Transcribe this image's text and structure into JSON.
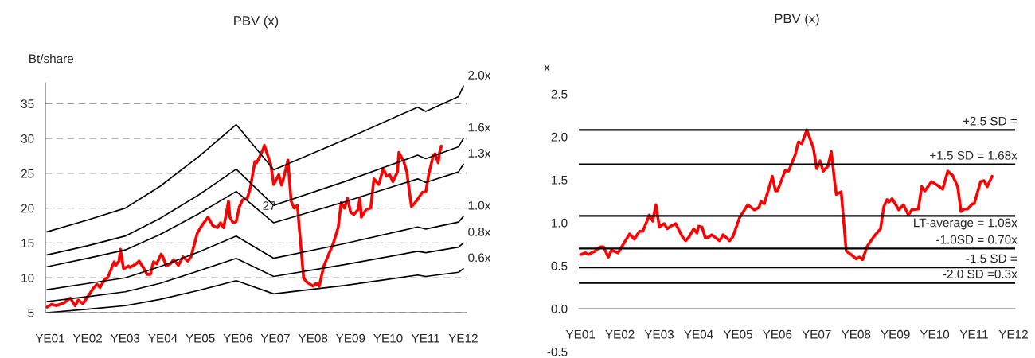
{
  "chart_data": [
    {
      "type": "line",
      "title": "PBV (x)",
      "ylabel": "Bt/share",
      "xlim": [
        "2001-11-15",
        "2013-02-01"
      ],
      "ylim": [
        5,
        38
      ],
      "yticks": [
        5,
        10,
        15,
        20,
        25,
        30,
        35
      ],
      "xticks": [
        {
          "value": "2001-12-31",
          "label": "YE01"
        },
        {
          "value": "2002-12-31",
          "label": "YE02"
        },
        {
          "value": "2003-12-31",
          "label": "YE03"
        },
        {
          "value": "2004-12-31",
          "label": "YE04"
        },
        {
          "value": "2005-12-31",
          "label": "YE05"
        },
        {
          "value": "2006-12-31",
          "label": "YE06"
        },
        {
          "value": "2007-12-31",
          "label": "YE07"
        },
        {
          "value": "2008-12-31",
          "label": "YE08"
        },
        {
          "value": "2009-12-31",
          "label": "YE09"
        },
        {
          "value": "2010-12-31",
          "label": "YE10"
        },
        {
          "value": "2011-12-31",
          "label": "YE11"
        },
        {
          "value": "2012-12-31",
          "label": "YE12"
        }
      ],
      "grid": "y",
      "legend": false,
      "marker": "none",
      "line_style": "solid",
      "annotations": [
        {
          "text": "27",
          "x": "2007-11-01",
          "y": 20.2
        }
      ],
      "series": [
        {
          "color": "#ff0000",
          "x": [
            "2001-12-01",
            "2002-01-15",
            "2002-03-01",
            "2002-05-15",
            "2002-07-15",
            "2002-09-01",
            "2002-10-01",
            "2002-11-15",
            "2003-01-01",
            "2003-03-01",
            "2003-04-01",
            "2003-05-01",
            "2003-06-15",
            "2003-07-15",
            "2003-09-01",
            "2003-09-15",
            "2003-10-01",
            "2003-11-01",
            "2003-11-15",
            "2003-12-15",
            "2004-02-01",
            "2004-02-15",
            "2004-04-15",
            "2004-05-15",
            "2004-07-01",
            "2004-08-01",
            "2004-09-01",
            "2004-10-01",
            "2004-11-01",
            "2004-12-15",
            "2005-01-01",
            "2005-02-01",
            "2005-03-15",
            "2005-04-15",
            "2005-06-01",
            "2005-07-15",
            "2005-09-01",
            "2005-10-01",
            "2005-12-01",
            "2006-01-15",
            "2006-03-15",
            "2006-05-01",
            "2006-06-15",
            "2006-07-15",
            "2006-08-15",
            "2006-10-01",
            "2006-10-15",
            "2006-11-15",
            "2006-12-15",
            "2007-01-15",
            "2007-02-15",
            "2007-04-01",
            "2007-05-01",
            "2007-06-15",
            "2007-07-01",
            "2007-08-01",
            "2007-09-01",
            "2007-09-15",
            "2007-11-15",
            "2007-12-15",
            "2008-02-01",
            "2008-03-01",
            "2008-03-15",
            "2008-05-01",
            "2008-06-01",
            "2008-07-01",
            "2008-08-01",
            "2008-08-15",
            "2008-10-01",
            "2008-11-01",
            "2009-01-01",
            "2009-02-01",
            "2009-03-01",
            "2009-04-15",
            "2009-07-15",
            "2009-09-01",
            "2009-10-01",
            "2009-11-01",
            "2009-12-01",
            "2010-01-01",
            "2010-02-01",
            "2010-03-15",
            "2010-04-01",
            "2010-04-15",
            "2010-06-01",
            "2010-07-15",
            "2010-08-15",
            "2010-10-01",
            "2010-11-15",
            "2010-12-15",
            "2011-01-15",
            "2011-02-15",
            "2011-04-01",
            "2011-04-15",
            "2011-06-01",
            "2011-07-01",
            "2011-08-15",
            "2011-10-01",
            "2011-12-01",
            "2012-01-01",
            "2012-02-01",
            "2012-03-15",
            "2012-04-01",
            "2012-05-01",
            "2012-05-15",
            "2012-06-01"
          ],
          "values": [
            5.8,
            6.2,
            6.0,
            6.4,
            7.1,
            6.0,
            6.8,
            6.3,
            7.3,
            8.6,
            9.1,
            8.6,
            9.8,
            10.0,
            11.8,
            12.3,
            11.8,
            12.4,
            14.1,
            11.3,
            11.7,
            11.5,
            12.0,
            12.4,
            11.3,
            10.5,
            10.5,
            12.3,
            12.0,
            13.4,
            13.0,
            11.7,
            12.0,
            12.6,
            11.8,
            13.0,
            12.4,
            13.0,
            16.4,
            17.5,
            18.7,
            17.5,
            17.2,
            17.9,
            17.2,
            21.0,
            18.7,
            17.9,
            18.1,
            20.2,
            21.2,
            21.4,
            22.9,
            26.7,
            26.5,
            27.4,
            28.4,
            29.0,
            26.3,
            23.4,
            24.8,
            23.3,
            24.0,
            26.9,
            21.0,
            20.0,
            20.4,
            17.9,
            9.9,
            9.4,
            8.8,
            9.2,
            8.8,
            11.7,
            14.9,
            17.2,
            20.8,
            20.0,
            21.4,
            19.4,
            19.1,
            19.8,
            21.5,
            18.7,
            19.8,
            20.0,
            24.2,
            23.4,
            25.7,
            24.6,
            24.8,
            23.8,
            25.2,
            28.0,
            26.7,
            25.2,
            20.2,
            21.0,
            22.3,
            22.3,
            25.0,
            27.6,
            27.8,
            26.5,
            28.0,
            28.9
          ]
        },
        {
          "name": "2.0x",
          "color": "#000000",
          "x": [
            "2001-12-01",
            "2003-01-01",
            "2004-01-01",
            "2004-12-01",
            "2005-12-15",
            "2006-12-15",
            "2007-12-15",
            "2009-11-01",
            "2011-10-15",
            "2012-01-01",
            "2012-11-15",
            "2013-01-01"
          ],
          "values": [
            16.6,
            18.3,
            20.0,
            23.1,
            27.4,
            32.0,
            25.5,
            29.8,
            34.5,
            33.9,
            36.0,
            37.5
          ]
        },
        {
          "name": "1.6x",
          "color": "#000000",
          "x": [
            "2001-12-01",
            "2003-01-01",
            "2004-01-01",
            "2004-12-01",
            "2005-12-15",
            "2006-12-15",
            "2007-12-15",
            "2009-11-01",
            "2011-10-15",
            "2012-01-01",
            "2012-11-15",
            "2013-01-01"
          ],
          "values": [
            13.3,
            14.6,
            16.0,
            18.5,
            21.9,
            25.6,
            20.4,
            23.8,
            27.6,
            27.1,
            28.8,
            30.0
          ]
        },
        {
          "name": "1.3x",
          "color": "#000000",
          "x": [
            "2001-12-01",
            "2003-01-01",
            "2004-01-01",
            "2004-12-01",
            "2005-12-15",
            "2006-12-15",
            "2007-12-15",
            "2009-11-01",
            "2011-10-15",
            "2012-01-01",
            "2012-11-15",
            "2013-01-01"
          ],
          "values": [
            11.6,
            12.8,
            14.0,
            16.2,
            19.2,
            22.4,
            17.9,
            20.9,
            24.2,
            23.7,
            25.2,
            26.3
          ]
        },
        {
          "name": "1.0x",
          "color": "#000000",
          "x": [
            "2001-12-01",
            "2003-01-01",
            "2004-01-01",
            "2004-12-01",
            "2005-12-15",
            "2006-12-15",
            "2007-12-15",
            "2009-11-01",
            "2011-10-15",
            "2012-01-01",
            "2012-11-15",
            "2013-01-01"
          ],
          "values": [
            8.3,
            9.2,
            10.0,
            11.6,
            13.7,
            16.0,
            12.8,
            14.9,
            17.3,
            17.0,
            18.0,
            18.8
          ]
        },
        {
          "name": "0.8x",
          "color": "#000000",
          "x": [
            "2001-12-01",
            "2003-01-01",
            "2004-01-01",
            "2004-12-01",
            "2005-12-15",
            "2006-12-15",
            "2007-12-15",
            "2009-11-01",
            "2011-10-15",
            "2012-01-01",
            "2012-11-15",
            "2013-01-01"
          ],
          "values": [
            6.6,
            7.3,
            8.0,
            9.2,
            11.0,
            12.8,
            10.2,
            11.9,
            13.8,
            13.6,
            14.4,
            15.0
          ]
        },
        {
          "name": "0.6x",
          "color": "#000000",
          "x": [
            "2001-12-01",
            "2003-01-01",
            "2004-01-01",
            "2004-12-01",
            "2005-12-15",
            "2006-12-15",
            "2007-12-15",
            "2009-11-01",
            "2011-10-15",
            "2012-01-01",
            "2012-11-15",
            "2013-01-01"
          ],
          "values": [
            5.0,
            5.5,
            6.0,
            6.9,
            8.2,
            9.6,
            7.7,
            8.9,
            10.4,
            10.2,
            10.8,
            11.3
          ]
        }
      ]
    },
    {
      "type": "line",
      "title": "PBV (x)",
      "ylabel": "x",
      "xlim": [
        "2001-12-15",
        "2013-01-15"
      ],
      "ylim": [
        -0.5,
        2.5
      ],
      "yticks": [
        {
          "value": -0.5,
          "label": "-0.5"
        },
        {
          "value": 0,
          "label": "0.0"
        },
        {
          "value": 0.5,
          "label": "0.5"
        },
        {
          "value": 1,
          "label": "1.0"
        },
        {
          "value": 1.5,
          "label": "1.5"
        },
        {
          "value": 2,
          "label": "2.0"
        },
        {
          "value": 2.5,
          "label": "2.5"
        }
      ],
      "xticks": [
        {
          "value": "2001-12-31",
          "label": "YE01"
        },
        {
          "value": "2002-12-31",
          "label": "YE02"
        },
        {
          "value": "2003-12-31",
          "label": "YE03"
        },
        {
          "value": "2004-12-31",
          "label": "YE04"
        },
        {
          "value": "2005-12-31",
          "label": "YE05"
        },
        {
          "value": "2006-12-31",
          "label": "YE06"
        },
        {
          "value": "2007-12-31",
          "label": "YE07"
        },
        {
          "value": "2008-12-31",
          "label": "YE08"
        },
        {
          "value": "2009-12-31",
          "label": "YE09"
        },
        {
          "value": "2010-12-31",
          "label": "YE10"
        },
        {
          "value": "2011-12-31",
          "label": "YE11"
        },
        {
          "value": "2012-12-31",
          "label": "YE12"
        }
      ],
      "legend": false,
      "marker": "none",
      "line_style": "solid",
      "ref_lines": [
        {
          "axis": "y",
          "value": 2.08,
          "label": "+2.5 SD =",
          "color": "#000000"
        },
        {
          "axis": "y",
          "value": 1.68,
          "label": "+1.5 SD = 1.68x",
          "color": "#000000"
        },
        {
          "axis": "y",
          "value": 1.08,
          "label": "LT-average = 1.08x",
          "color": "#000000"
        },
        {
          "axis": "y",
          "value": 0.7,
          "label": "-1.0SD = 0.70x",
          "color": "#000000"
        },
        {
          "axis": "y",
          "value": 0.48,
          "label": "-1.5 SD =",
          "color": "#000000"
        },
        {
          "axis": "y",
          "value": 0.3,
          "label": "-2.0 SD =0.3x",
          "color": "#000000"
        }
      ],
      "series": [
        {
          "color": "#ff0000",
          "x": [
            "2002-01-01",
            "2002-02-15",
            "2002-03-15",
            "2002-05-15",
            "2002-07-01",
            "2002-08-01",
            "2002-09-15",
            "2002-10-15",
            "2002-12-15",
            "2003-02-01",
            "2003-04-01",
            "2003-05-15",
            "2003-07-01",
            "2003-08-01",
            "2003-10-01",
            "2003-11-01",
            "2003-12-01",
            "2004-01-01",
            "2004-02-15",
            "2004-03-15",
            "2004-04-15",
            "2004-06-01",
            "2004-08-01",
            "2004-09-01",
            "2004-10-01",
            "2004-11-15",
            "2004-12-15",
            "2005-01-01",
            "2005-02-01",
            "2005-03-01",
            "2005-04-01",
            "2005-05-01",
            "2005-07-15",
            "2005-08-15",
            "2005-10-15",
            "2005-11-15",
            "2006-01-15",
            "2006-04-01",
            "2006-06-01",
            "2006-07-15",
            "2006-08-01",
            "2006-09-01",
            "2006-11-15",
            "2006-12-15",
            "2007-01-01",
            "2007-03-15",
            "2007-04-15",
            "2007-06-15",
            "2007-07-15",
            "2007-08-15",
            "2007-10-01",
            "2007-12-01",
            "2008-01-01",
            "2008-02-01",
            "2008-03-01",
            "2008-04-15",
            "2008-05-15",
            "2008-06-15",
            "2008-07-01",
            "2008-08-15",
            "2008-10-01",
            "2008-11-15",
            "2009-01-01",
            "2009-02-01",
            "2009-03-01",
            "2009-04-15",
            "2009-06-15",
            "2009-08-15",
            "2009-09-15",
            "2009-10-15",
            "2009-11-01",
            "2009-12-01",
            "2010-02-01",
            "2010-03-15",
            "2010-05-01",
            "2010-06-01",
            "2010-08-01",
            "2010-09-01",
            "2010-10-01",
            "2010-12-01",
            "2011-02-01",
            "2011-03-15",
            "2011-05-01",
            "2011-06-15",
            "2011-08-01",
            "2011-09-01",
            "2011-10-01",
            "2011-11-01",
            "2011-12-15",
            "2012-01-01",
            "2012-03-01",
            "2012-04-01",
            "2012-05-01",
            "2012-06-15"
          ],
          "values": [
            0.63,
            0.65,
            0.63,
            0.67,
            0.72,
            0.72,
            0.6,
            0.68,
            0.65,
            0.75,
            0.87,
            0.81,
            0.9,
            0.9,
            1.09,
            1.02,
            1.21,
            0.95,
            0.99,
            0.93,
            0.96,
            0.99,
            0.84,
            0.79,
            0.83,
            0.93,
            0.88,
            0.96,
            0.95,
            0.83,
            0.83,
            0.86,
            0.79,
            0.86,
            0.79,
            0.84,
            1.06,
            1.21,
            1.15,
            1.18,
            1.25,
            1.22,
            1.54,
            1.37,
            1.37,
            1.61,
            1.6,
            1.79,
            1.94,
            1.92,
            2.08,
            1.87,
            1.63,
            1.72,
            1.6,
            1.66,
            1.83,
            1.48,
            1.33,
            1.36,
            0.67,
            0.63,
            0.58,
            0.6,
            0.57,
            0.73,
            0.84,
            0.93,
            1.19,
            1.27,
            1.24,
            1.28,
            1.15,
            1.21,
            1.09,
            1.15,
            1.16,
            1.42,
            1.37,
            1.48,
            1.43,
            1.39,
            1.6,
            1.55,
            1.42,
            1.13,
            1.16,
            1.16,
            1.22,
            1.22,
            1.48,
            1.49,
            1.42,
            1.54
          ]
        }
      ]
    }
  ]
}
